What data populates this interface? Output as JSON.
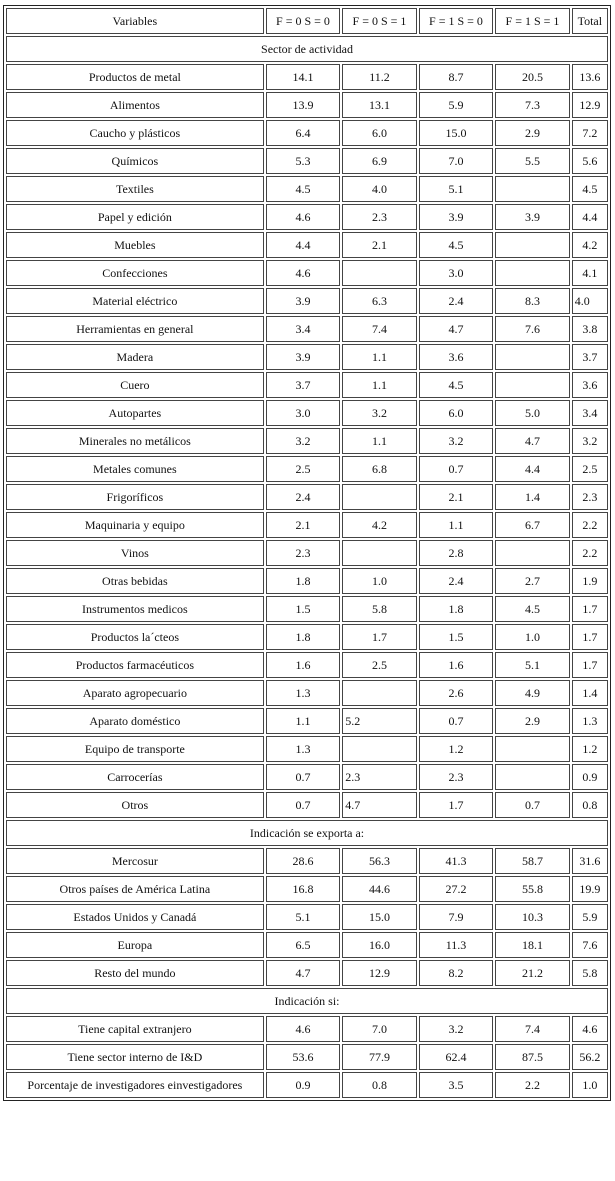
{
  "header": [
    "Variables",
    "F = 0 S = 0",
    "F = 0 S = 1",
    "F = 1 S = 0",
    "F = 1 S = 1",
    "Total"
  ],
  "sections": [
    {
      "title": "Sector de actividad",
      "rows": [
        {
          "label": "Productos de metal",
          "values": [
            "14.1",
            "11.2",
            "8.7",
            "20.5",
            "13.6"
          ]
        },
        {
          "label": "Alimentos",
          "values": [
            "13.9",
            "13.1",
            "5.9",
            "7.3",
            "12.9"
          ]
        },
        {
          "label": "Caucho y plásticos",
          "values": [
            "6.4",
            "6.0",
            "15.0",
            "2.9",
            "7.2"
          ]
        },
        {
          "label": "Químicos",
          "values": [
            "5.3",
            "6.9",
            "7.0",
            "5.5",
            "5.6"
          ]
        },
        {
          "label": "Textiles",
          "values": [
            "4.5",
            "4.0",
            "5.1",
            "",
            "4.5"
          ]
        },
        {
          "label": "Papel y edición",
          "values": [
            "4.6",
            "2.3",
            "3.9",
            "3.9",
            "4.4"
          ]
        },
        {
          "label": "Muebles",
          "values": [
            "4.4",
            "2.1",
            "4.5",
            "",
            "4.2"
          ]
        },
        {
          "label": "Confecciones",
          "values": [
            "4.6",
            "",
            "3.0",
            "",
            "4.1"
          ]
        },
        {
          "label": "Material eléctrico",
          "values": [
            "3.9",
            "6.3",
            "2.4",
            "8.3",
            "4.0"
          ],
          "leftAlignTotal": true
        },
        {
          "label": "Herramientas en general",
          "values": [
            "3.4",
            "7.4",
            "4.7",
            "7.6",
            "3.8"
          ]
        },
        {
          "label": "Madera",
          "values": [
            "3.9",
            "1.1",
            "3.6",
            "",
            "3.7"
          ]
        },
        {
          "label": "Cuero",
          "values": [
            "3.7",
            "1.1",
            "4.5",
            "",
            "3.6"
          ]
        },
        {
          "label": "Autopartes",
          "values": [
            "3.0",
            "3.2",
            "6.0",
            "5.0",
            "3.4"
          ]
        },
        {
          "label": "Minerales no metálicos",
          "values": [
            "3.2",
            "1.1",
            "3.2",
            "4.7",
            "3.2"
          ]
        },
        {
          "label": "Metales comunes",
          "values": [
            "2.5",
            "6.8",
            "0.7",
            "4.4",
            "2.5"
          ]
        },
        {
          "label": "Frigoríficos",
          "values": [
            "2.4",
            "",
            "2.1",
            "1.4",
            "2.3"
          ]
        },
        {
          "label": "Maquinaria y equipo",
          "values": [
            "2.1",
            "4.2",
            "1.1",
            "6.7",
            "2.2"
          ]
        },
        {
          "label": "Vinos",
          "values": [
            "2.3",
            "",
            "2.8",
            "",
            "2.2"
          ]
        },
        {
          "label": "Otras bebidas",
          "values": [
            "1.8",
            "1.0",
            "2.4",
            "2.7",
            "1.9"
          ]
        },
        {
          "label": "Instrumentos medicos",
          "values": [
            "1.5",
            "5.8",
            "1.8",
            "4.5",
            "1.7"
          ]
        },
        {
          "label": "Productos la´cteos",
          "values": [
            "1.8",
            "1.7",
            "1.5",
            "1.0",
            "1.7"
          ]
        },
        {
          "label": "Productos farmacéuticos",
          "values": [
            "1.6",
            "2.5",
            "1.6",
            "5.1",
            "1.7"
          ]
        },
        {
          "label": "Aparato agropecuario",
          "values": [
            "1.3",
            "",
            "2.6",
            "4.9",
            "1.4"
          ]
        },
        {
          "label": "Aparato doméstico",
          "values": [
            "1.1",
            "5.2",
            "0.7",
            "2.9",
            "1.3"
          ],
          "leftAlignCol2": true
        },
        {
          "label": "Equipo de transporte",
          "values": [
            "1.3",
            "",
            "1.2",
            "",
            "1.2"
          ]
        },
        {
          "label": "Carrocerías",
          "values": [
            "0.7",
            "2.3",
            "2.3",
            "",
            "0.9"
          ],
          "leftAlignCol2": true
        },
        {
          "label": "Otros",
          "values": [
            "0.7",
            "4.7",
            "1.7",
            "0.7",
            "0.8"
          ],
          "leftAlignCol2": true
        }
      ]
    },
    {
      "title": "Indicación se exporta a:",
      "rows": [
        {
          "label": "Mercosur",
          "values": [
            "28.6",
            "56.3",
            "41.3",
            "58.7",
            "31.6"
          ]
        },
        {
          "label": "Otros países de América Latina",
          "values": [
            "16.8",
            "44.6",
            "27.2",
            "55.8",
            "19.9"
          ]
        },
        {
          "label": "Estados Unidos y Canadá",
          "values": [
            "5.1",
            "15.0",
            "7.9",
            "10.3",
            "5.9"
          ]
        },
        {
          "label": "Europa",
          "values": [
            "6.5",
            "16.0",
            "11.3",
            "18.1",
            "7.6"
          ]
        },
        {
          "label": "Resto del mundo",
          "values": [
            "4.7",
            "12.9",
            "8.2",
            "21.2",
            "5.8"
          ]
        }
      ]
    },
    {
      "title": "Indicación si:",
      "rows": [
        {
          "label": "Tiene capital extranjero",
          "values": [
            "4.6",
            "7.0",
            "3.2",
            "7.4",
            "4.6"
          ]
        },
        {
          "label": "Tiene sector interno de I&D",
          "values": [
            "53.6",
            "77.9",
            "62.4",
            "87.5",
            "56.2"
          ]
        },
        {
          "label": "Porcentaje de investigadores einvestigadores",
          "values": [
            "0.9",
            "0.8",
            "3.5",
            "2.2",
            "1.0"
          ]
        }
      ]
    }
  ]
}
